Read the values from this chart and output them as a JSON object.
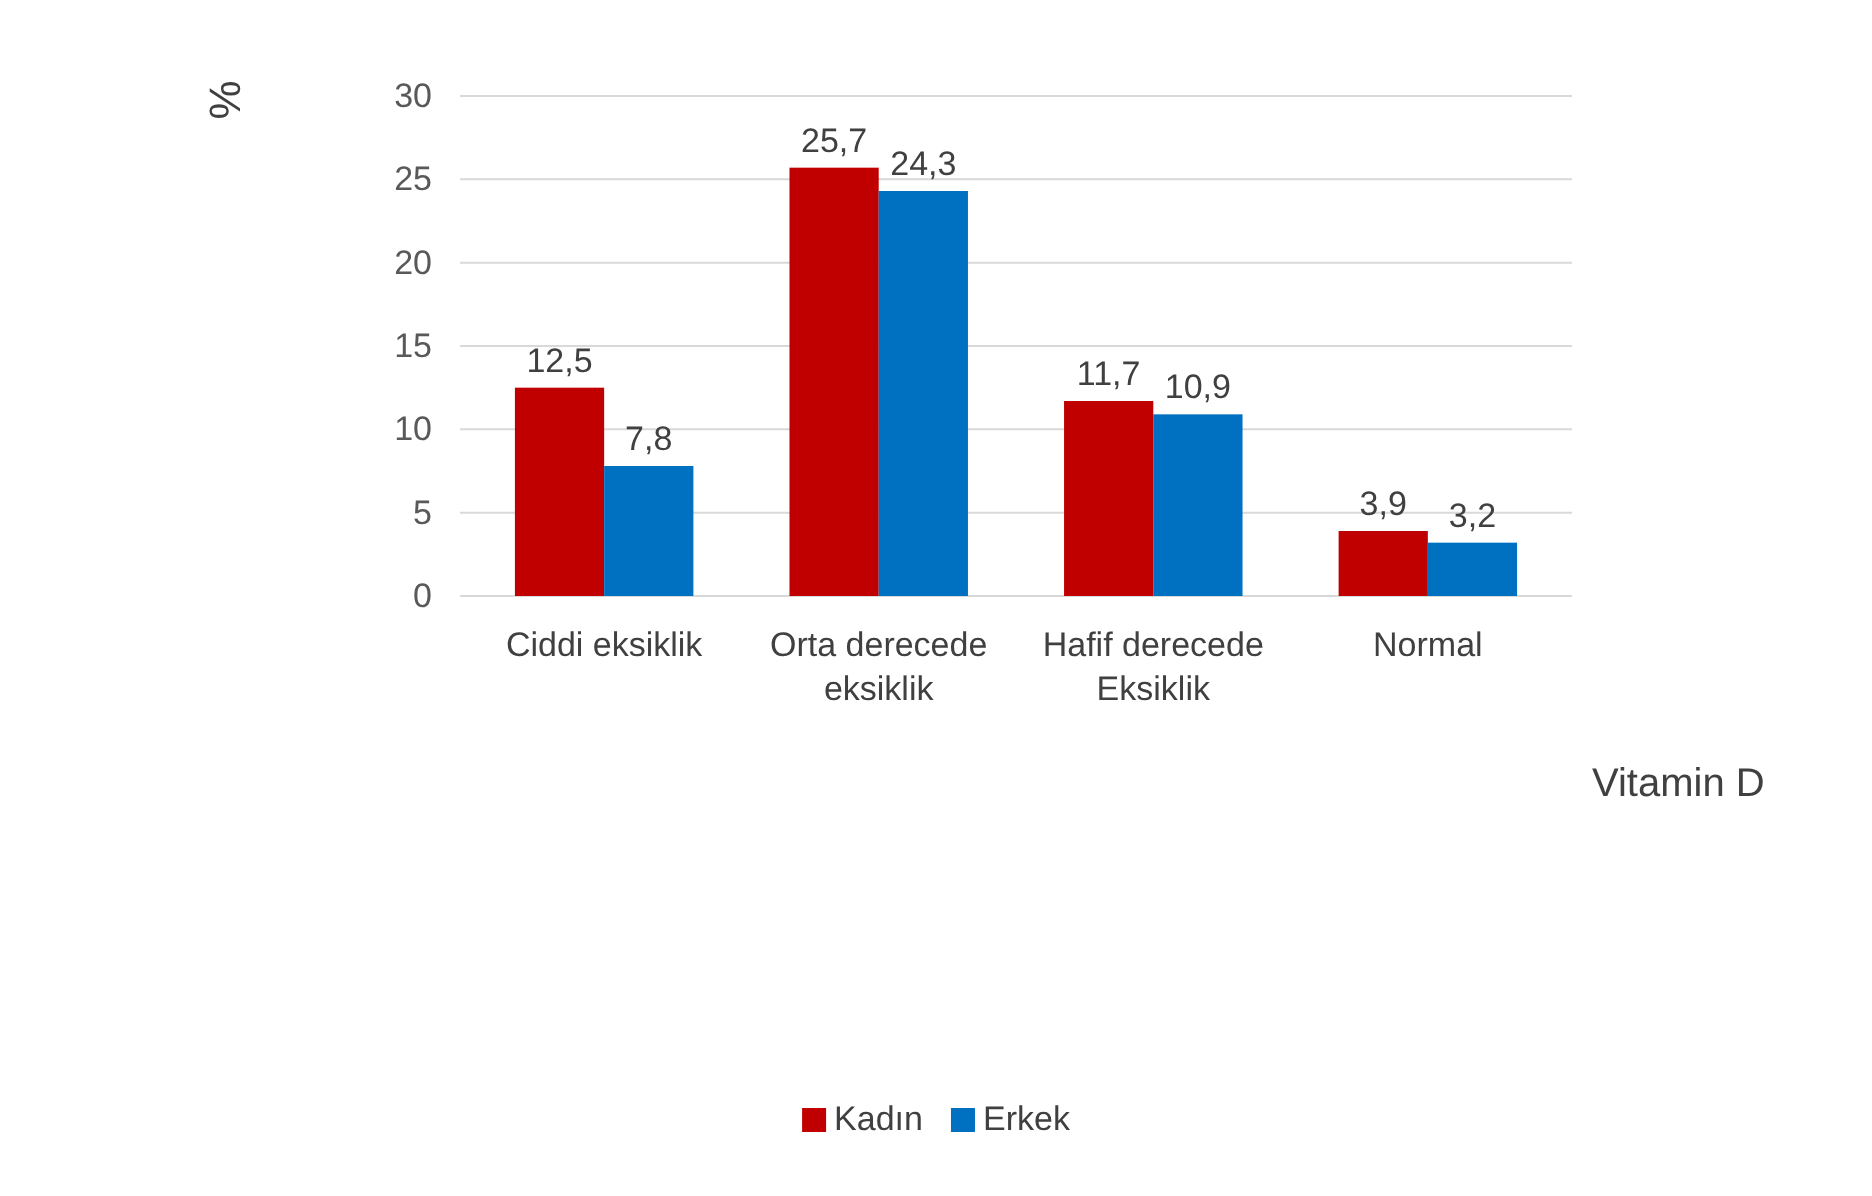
{
  "chart_data": {
    "type": "bar",
    "ylabel": "%",
    "xlabel": "Vitamin D",
    "categories": [
      "Ciddi eksiklik",
      "Orta derecede eksiklik",
      "Hafif derecede Eksiklik",
      "Normal"
    ],
    "series": [
      {
        "name": "Kadın",
        "color": "#c00000",
        "values": [
          12.5,
          25.7,
          11.7,
          3.9
        ],
        "value_labels": [
          "12,5",
          "25,7",
          "11,7",
          "3,9"
        ]
      },
      {
        "name": "Erkek",
        "color": "#0070c0",
        "values": [
          7.8,
          24.3,
          10.9,
          3.2
        ],
        "value_labels": [
          "7,8",
          "24,3",
          "10,9",
          "3,2"
        ]
      }
    ],
    "ylim": [
      0,
      30
    ],
    "yticks": [
      0,
      5,
      10,
      15,
      20,
      25,
      30
    ],
    "grid": "y",
    "legend": "bottom"
  }
}
